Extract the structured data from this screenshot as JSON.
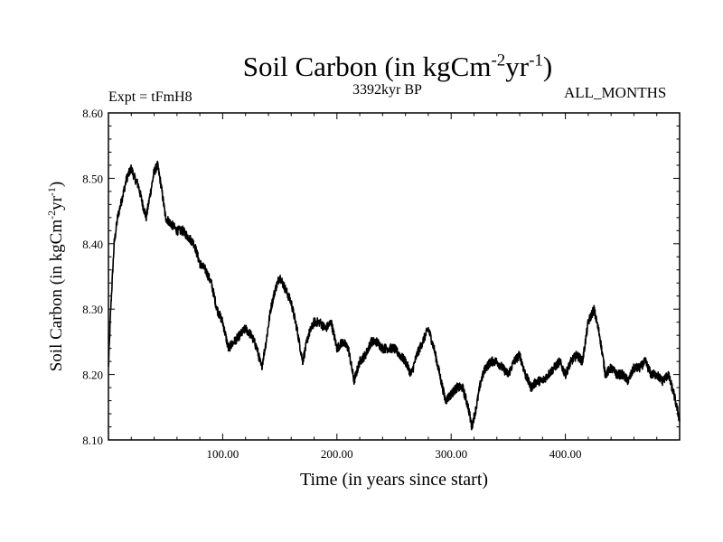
{
  "chart_data": {
    "type": "line",
    "title": "Soil Carbon (in kgCm",
    "title_sup1": "-2",
    "title_mid": "yr",
    "title_sup2": "-1",
    "title_end": ")",
    "left_label": "Expt = tFmH8",
    "subtitle": "3392kyr BP",
    "right_label": "ALL_MONTHS",
    "xlabel": "Time (in years since start)",
    "ylabel": "Soil Carbon (in kgCm",
    "ylabel_sup1": "-2",
    "ylabel_mid": "yr",
    "ylabel_sup2": "-1",
    "ylabel_end": ")",
    "xlim": [
      0,
      500
    ],
    "ylim": [
      8.1,
      8.6
    ],
    "x_ticks": [
      100,
      200,
      300,
      400
    ],
    "x_tick_labels": [
      "100.00",
      "200.00",
      "300.00",
      "400.00"
    ],
    "y_ticks": [
      8.1,
      8.2,
      8.3,
      8.4,
      8.5,
      8.6
    ],
    "y_tick_labels": [
      "8.10",
      "8.20",
      "8.30",
      "8.40",
      "8.50",
      "8.60"
    ],
    "line_color": "#000000",
    "noise_amplitude": 0.007,
    "series": [
      {
        "name": "Soil Carbon",
        "x": [
          0,
          2,
          5,
          8,
          12,
          16,
          20,
          23,
          26,
          30,
          33,
          36,
          40,
          43,
          46,
          50,
          55,
          60,
          65,
          70,
          75,
          80,
          85,
          90,
          95,
          100,
          105,
          110,
          115,
          120,
          125,
          130,
          134,
          138,
          142,
          146,
          150,
          155,
          160,
          165,
          170,
          175,
          180,
          185,
          190,
          195,
          200,
          205,
          210,
          215,
          220,
          225,
          230,
          235,
          240,
          245,
          250,
          255,
          260,
          265,
          270,
          275,
          280,
          285,
          290,
          295,
          300,
          305,
          310,
          315,
          318,
          322,
          326,
          330,
          335,
          340,
          345,
          350,
          355,
          360,
          365,
          370,
          375,
          380,
          385,
          390,
          395,
          400,
          405,
          410,
          415,
          420,
          425,
          430,
          435,
          440,
          445,
          450,
          455,
          460,
          465,
          470,
          475,
          480,
          485,
          490,
          495,
          500
        ],
        "values": [
          8.21,
          8.3,
          8.4,
          8.44,
          8.47,
          8.5,
          8.515,
          8.5,
          8.49,
          8.46,
          8.44,
          8.47,
          8.51,
          8.52,
          8.49,
          8.44,
          8.43,
          8.42,
          8.42,
          8.41,
          8.4,
          8.37,
          8.36,
          8.34,
          8.3,
          8.28,
          8.24,
          8.25,
          8.26,
          8.27,
          8.26,
          8.24,
          8.21,
          8.25,
          8.3,
          8.33,
          8.35,
          8.33,
          8.31,
          8.27,
          8.22,
          8.26,
          8.28,
          8.28,
          8.27,
          8.28,
          8.24,
          8.25,
          8.24,
          8.19,
          8.22,
          8.23,
          8.25,
          8.25,
          8.24,
          8.24,
          8.24,
          8.23,
          8.22,
          8.2,
          8.23,
          8.25,
          8.27,
          8.24,
          8.2,
          8.16,
          8.17,
          8.18,
          8.18,
          8.15,
          8.12,
          8.15,
          8.19,
          8.21,
          8.22,
          8.22,
          8.21,
          8.2,
          8.22,
          8.23,
          8.2,
          8.18,
          8.19,
          8.19,
          8.2,
          8.21,
          8.22,
          8.2,
          8.22,
          8.23,
          8.22,
          8.28,
          8.3,
          8.26,
          8.2,
          8.21,
          8.2,
          8.2,
          8.19,
          8.21,
          8.21,
          8.22,
          8.2,
          8.2,
          8.19,
          8.2,
          8.17,
          8.13
        ]
      }
    ]
  }
}
